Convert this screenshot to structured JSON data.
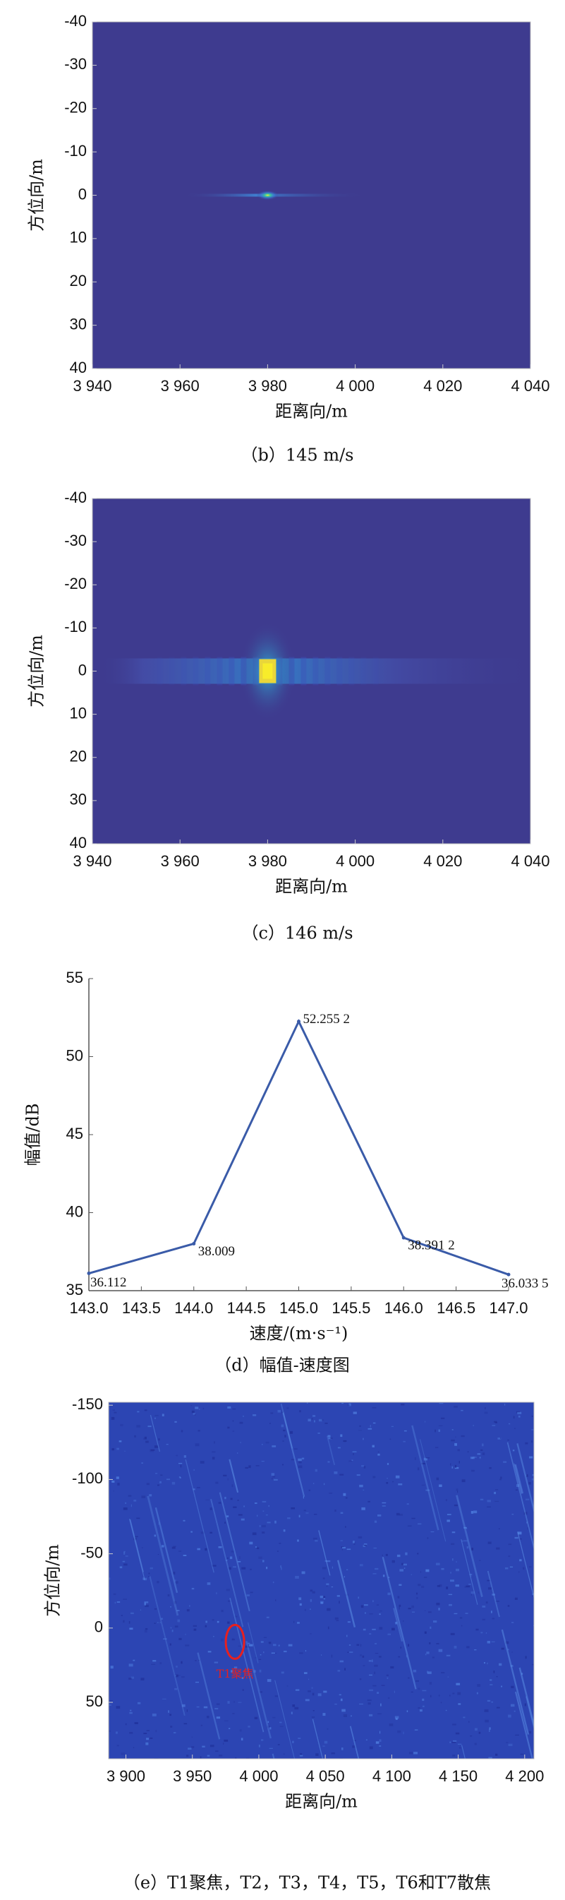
{
  "chart_data": [
    {
      "type": "heatmap",
      "caption": "（b）145 m/s",
      "xlabel": "距离向/m",
      "ylabel": "方位向/m",
      "color": "#3e3b8f",
      "xlim": [
        3940,
        4040
      ],
      "xticks": [
        {
          "value": 3940,
          "label": "3 940"
        },
        {
          "value": 3960,
          "label": "3 960"
        },
        {
          "value": 3980,
          "label": "3 980"
        },
        {
          "value": 4000,
          "label": "4 000"
        },
        {
          "value": 4020,
          "label": "4 020"
        },
        {
          "value": 4040,
          "label": "4 040"
        }
      ],
      "ylim": [
        -40,
        40
      ],
      "yticks": [
        -40,
        -30,
        -20,
        -10,
        0,
        10,
        20,
        30,
        40
      ],
      "y_reversed": true
    },
    {
      "type": "heatmap",
      "caption": "（c）146 m/s",
      "xlabel": "距离向/m",
      "ylabel": "方位向/m",
      "color": "#3e3b8f",
      "xlim": [
        3940,
        4040
      ],
      "xticks": [
        {
          "value": 3940,
          "label": "3 940"
        },
        {
          "value": 3960,
          "label": "3 960"
        },
        {
          "value": 3980,
          "label": "3 980"
        },
        {
          "value": 4000,
          "label": "4 000"
        },
        {
          "value": 4020,
          "label": "4 020"
        },
        {
          "value": 4040,
          "label": "4 040"
        }
      ],
      "ylim": [
        -40,
        40
      ],
      "yticks": [
        -40,
        -30,
        -20,
        -10,
        0,
        10,
        20,
        30,
        40
      ],
      "y_reversed": true
    },
    {
      "type": "line",
      "caption": "（d）幅值-速度图",
      "xlabel": "速度/(m·s⁻¹)",
      "ylabel": "幅值/dB",
      "color": "#3a5ba8",
      "x": [
        143,
        144,
        145,
        146,
        147
      ],
      "values": [
        36.112,
        38.009,
        52.2552,
        38.3912,
        36.0335
      ],
      "value_labels": [
        "36.112",
        "38.009",
        "52.255 2",
        "38.391 2",
        "36.033 5"
      ],
      "xlim": [
        143,
        147
      ],
      "xticks": [
        {
          "value": 143,
          "label": "143.0"
        },
        {
          "value": 143.5,
          "label": "143.5"
        },
        {
          "value": 144,
          "label": "144.0"
        },
        {
          "value": 144.5,
          "label": "144.5"
        },
        {
          "value": 145,
          "label": "145.0"
        },
        {
          "value": 145.5,
          "label": "145.5"
        },
        {
          "value": 146,
          "label": "146.0"
        },
        {
          "value": 146.5,
          "label": "146.5"
        },
        {
          "value": 147,
          "label": "147.0"
        }
      ],
      "ylim": [
        35,
        55
      ],
      "yticks": [
        35,
        40,
        45,
        50,
        55
      ]
    },
    {
      "type": "heatmap",
      "caption": "（e）T1聚焦，T2，T3，T4，T5，T6和T7散焦",
      "xlabel": "距离向/m",
      "ylabel": "方位向/m",
      "color": "#2c45b3",
      "annotation": "T1聚焦",
      "xlim": [
        3887,
        4207
      ],
      "xticks": [
        {
          "value": 3900,
          "label": "3 900"
        },
        {
          "value": 3950,
          "label": "3 950"
        },
        {
          "value": 4000,
          "label": "4 000"
        },
        {
          "value": 4050,
          "label": "4 050"
        },
        {
          "value": 4100,
          "label": "4 100"
        },
        {
          "value": 4150,
          "label": "4 150"
        },
        {
          "value": 4200,
          "label": "4 200"
        }
      ],
      "ylim": [
        -152,
        88
      ],
      "yticks": [
        -150,
        -100,
        -50,
        0,
        50
      ],
      "y_reversed": true
    }
  ]
}
